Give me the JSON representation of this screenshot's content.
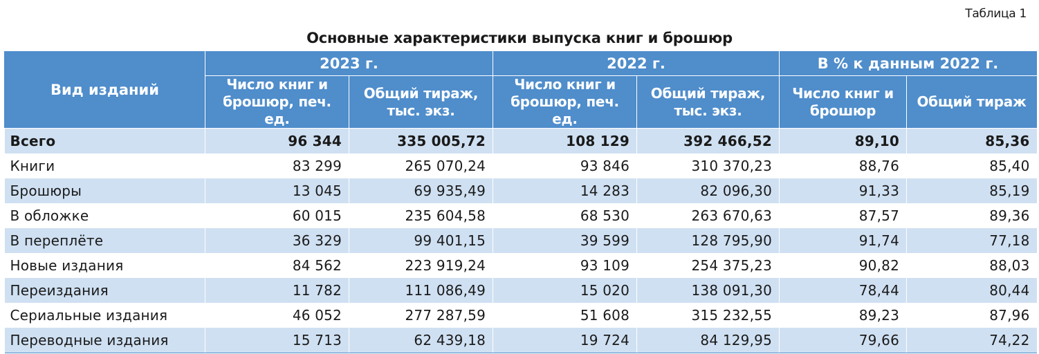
{
  "table_label": "Таблица 1",
  "title": "Основные характеристики выпуска книг и брошюр",
  "header": {
    "kind": "Вид изданий",
    "groups": [
      "2023 г.",
      "2022 г.",
      "В % к данным 2022 г."
    ],
    "sub": [
      "Число книг и брошюр, печ. ед.",
      "Общий тираж, тыс. экз.",
      "Число книг и брошюр, печ. ед.",
      "Общий тираж, тыс. экз.",
      "Число книг и брошюр",
      "Общий тираж"
    ]
  },
  "rows": [
    {
      "kind": "Всего",
      "values": [
        "96 344",
        "335 005,72",
        "108 129",
        "392 466,52",
        "89,10",
        "85,36"
      ]
    },
    {
      "kind": "Книги",
      "values": [
        "83 299",
        "265 070,24",
        "93 846",
        "310 370,23",
        "88,76",
        "85,40"
      ]
    },
    {
      "kind": "Брошюры",
      "values": [
        "13 045",
        "69 935,49",
        "14 283",
        "82 096,30",
        "91,33",
        "85,19"
      ]
    },
    {
      "kind": "В обложке",
      "values": [
        "60 015",
        "235 604,58",
        "68 530",
        "263 670,63",
        "87,57",
        "89,36"
      ]
    },
    {
      "kind": "В переплёте",
      "values": [
        "36 329",
        "99 401,15",
        "39 599",
        "128 795,90",
        "91,74",
        "77,18"
      ]
    },
    {
      "kind": "Новые издания",
      "values": [
        "84 562",
        "223 919,24",
        "93 109",
        "254 375,23",
        "90,82",
        "88,03"
      ]
    },
    {
      "kind": "Переиздания",
      "values": [
        "11 782",
        "111 086,49",
        "15 020",
        "138 091,30",
        "78,44",
        "80,44"
      ]
    },
    {
      "kind": "Сериальные издания",
      "values": [
        "46 052",
        "277 287,59",
        "51 608",
        "315 232,55",
        "89,23",
        "87,96"
      ]
    },
    {
      "kind": "Переводные издания",
      "values": [
        "15 713",
        "62 439,18",
        "19 724",
        "84 129,95",
        "79,66",
        "74,22"
      ]
    }
  ]
}
